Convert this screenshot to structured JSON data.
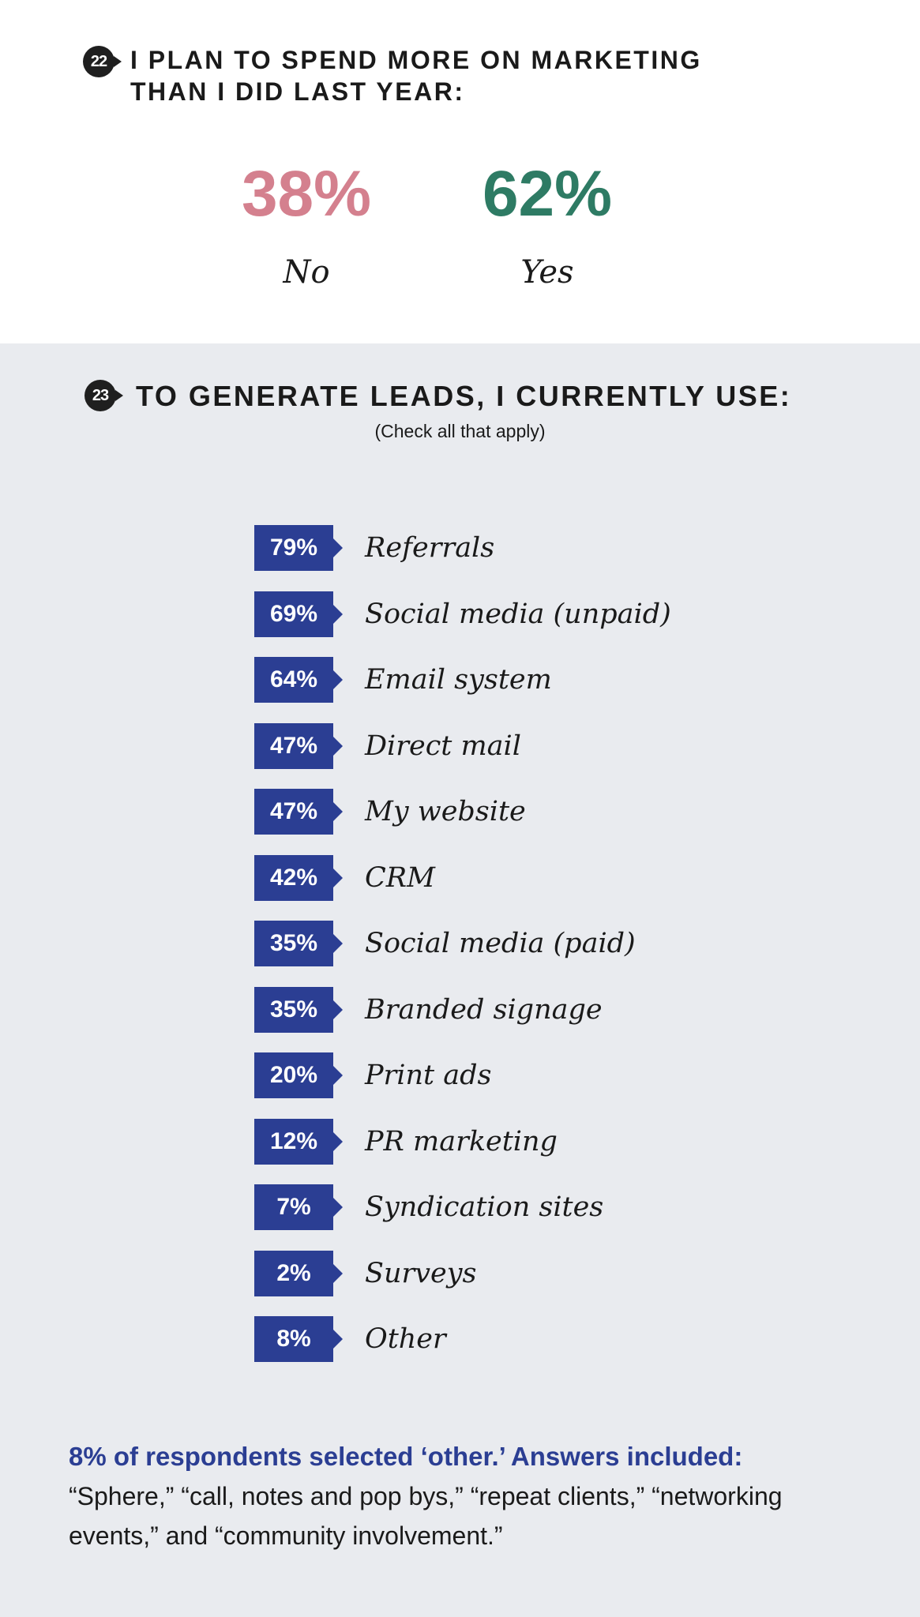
{
  "q22": {
    "number": "22",
    "title_line1": "I PLAN TO SPEND MORE ON MARKETING",
    "title_line2": "THAN I DID LAST YEAR:",
    "no_value": "38%",
    "no_label": "No",
    "yes_value": "62%",
    "yes_label": "Yes",
    "colors": {
      "no": "#d4808e",
      "yes": "#2e7b64"
    }
  },
  "q23": {
    "number": "23",
    "title": "TO GENERATE LEADS, I CURRENTLY USE:",
    "subtitle": "(Check all that apply)",
    "accent_color": "#2b3e93"
  },
  "chart_data": {
    "type": "table",
    "categories": [
      "Referrals",
      "Social media (unpaid)",
      "Email system",
      "Direct mail",
      "My website",
      "CRM",
      "Social media (paid)",
      "Branded signage",
      "Print ads",
      "PR marketing",
      "Syndication sites",
      "Surveys",
      "Other"
    ],
    "values": [
      79,
      69,
      64,
      47,
      47,
      42,
      35,
      35,
      20,
      12,
      7,
      2,
      8
    ],
    "value_labels": [
      "79%",
      "69%",
      "64%",
      "47%",
      "47%",
      "42%",
      "35%",
      "35%",
      "20%",
      "12%",
      "7%",
      "2%",
      "8%"
    ]
  },
  "footnote": {
    "heading": "8% of respondents selected ‘other.’ Answers included:",
    "body": "“Sphere,” “call, notes and pop bys,” “repeat clients,” “networking events,” and “community involvement.”"
  }
}
